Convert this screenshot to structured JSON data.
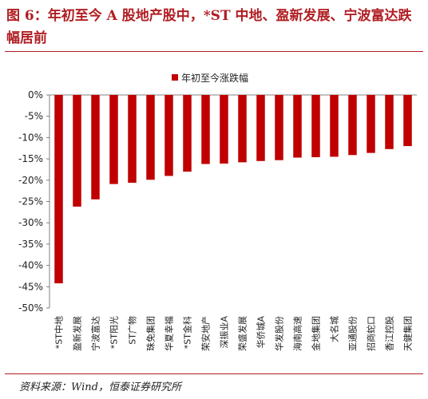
{
  "figure": {
    "title": "图 6：年初至今 A 股地产股中，*ST 中地、盈新发展、宁波富达跌幅居前",
    "source": "资料来源：Wind，恒泰证券研究所"
  },
  "colors": {
    "bar": "#c00000",
    "accent": "#b01e23",
    "axis": "#808080"
  },
  "chart_data": {
    "type": "bar",
    "categories": [
      "*ST中地",
      "盈新发展",
      "宁波富达",
      "*ST阳光",
      "ST广物",
      "珠免集团",
      "华夏幸福",
      "*ST金科",
      "荣安地产",
      "深振业A",
      "荣盛发展",
      "华侨城A",
      "华发股份",
      "海南高速",
      "金地集团",
      "大名城",
      "亚通股份",
      "招商蛇口",
      "香江控股",
      "天健集团"
    ],
    "series": [
      {
        "name": "年初至今涨跌幅",
        "values": [
          -44.2,
          -26.2,
          -24.5,
          -20.9,
          -20.6,
          -19.9,
          -19.0,
          -18.0,
          -16.2,
          -16.1,
          -15.8,
          -15.5,
          -15.3,
          -14.7,
          -14.6,
          -14.5,
          -14.1,
          -13.6,
          -12.7,
          -12.0
        ]
      }
    ],
    "ylim": [
      -50,
      0
    ],
    "yticks": [
      0,
      -5,
      -10,
      -15,
      -20,
      -25,
      -30,
      -35,
      -40,
      -45,
      -50
    ],
    "tick_suffix": "%",
    "grid": false,
    "legend_position": "top-center"
  }
}
